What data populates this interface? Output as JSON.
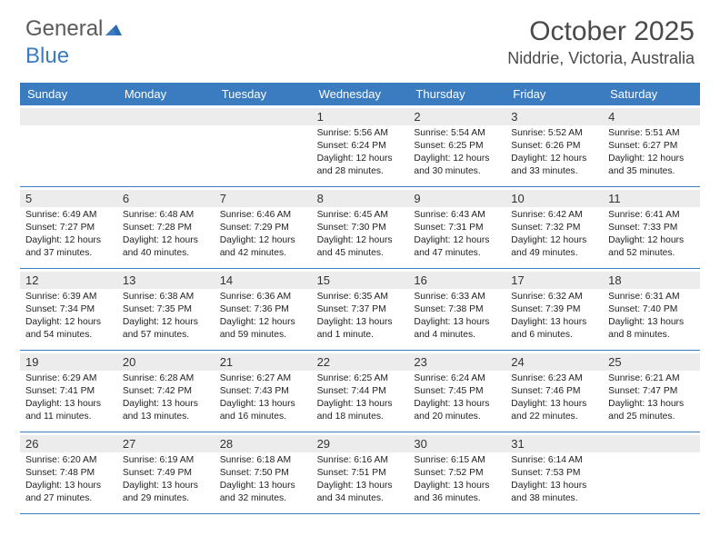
{
  "logo": {
    "text1": "General",
    "text2": "Blue"
  },
  "title": "October 2025",
  "location": "Niddrie, Victoria, Australia",
  "colors": {
    "header_bg": "#3b7bbf",
    "daynum_bg": "#ececec",
    "border": "#3b7bbf",
    "text": "#222222"
  },
  "day_headers": [
    "Sunday",
    "Monday",
    "Tuesday",
    "Wednesday",
    "Thursday",
    "Friday",
    "Saturday"
  ],
  "weeks": [
    [
      {
        "day": "",
        "sunrise": "",
        "sunset": "",
        "daylight": ""
      },
      {
        "day": "",
        "sunrise": "",
        "sunset": "",
        "daylight": ""
      },
      {
        "day": "",
        "sunrise": "",
        "sunset": "",
        "daylight": ""
      },
      {
        "day": "1",
        "sunrise": "Sunrise: 5:56 AM",
        "sunset": "Sunset: 6:24 PM",
        "daylight": "Daylight: 12 hours and 28 minutes."
      },
      {
        "day": "2",
        "sunrise": "Sunrise: 5:54 AM",
        "sunset": "Sunset: 6:25 PM",
        "daylight": "Daylight: 12 hours and 30 minutes."
      },
      {
        "day": "3",
        "sunrise": "Sunrise: 5:52 AM",
        "sunset": "Sunset: 6:26 PM",
        "daylight": "Daylight: 12 hours and 33 minutes."
      },
      {
        "day": "4",
        "sunrise": "Sunrise: 5:51 AM",
        "sunset": "Sunset: 6:27 PM",
        "daylight": "Daylight: 12 hours and 35 minutes."
      }
    ],
    [
      {
        "day": "5",
        "sunrise": "Sunrise: 6:49 AM",
        "sunset": "Sunset: 7:27 PM",
        "daylight": "Daylight: 12 hours and 37 minutes."
      },
      {
        "day": "6",
        "sunrise": "Sunrise: 6:48 AM",
        "sunset": "Sunset: 7:28 PM",
        "daylight": "Daylight: 12 hours and 40 minutes."
      },
      {
        "day": "7",
        "sunrise": "Sunrise: 6:46 AM",
        "sunset": "Sunset: 7:29 PM",
        "daylight": "Daylight: 12 hours and 42 minutes."
      },
      {
        "day": "8",
        "sunrise": "Sunrise: 6:45 AM",
        "sunset": "Sunset: 7:30 PM",
        "daylight": "Daylight: 12 hours and 45 minutes."
      },
      {
        "day": "9",
        "sunrise": "Sunrise: 6:43 AM",
        "sunset": "Sunset: 7:31 PM",
        "daylight": "Daylight: 12 hours and 47 minutes."
      },
      {
        "day": "10",
        "sunrise": "Sunrise: 6:42 AM",
        "sunset": "Sunset: 7:32 PM",
        "daylight": "Daylight: 12 hours and 49 minutes."
      },
      {
        "day": "11",
        "sunrise": "Sunrise: 6:41 AM",
        "sunset": "Sunset: 7:33 PM",
        "daylight": "Daylight: 12 hours and 52 minutes."
      }
    ],
    [
      {
        "day": "12",
        "sunrise": "Sunrise: 6:39 AM",
        "sunset": "Sunset: 7:34 PM",
        "daylight": "Daylight: 12 hours and 54 minutes."
      },
      {
        "day": "13",
        "sunrise": "Sunrise: 6:38 AM",
        "sunset": "Sunset: 7:35 PM",
        "daylight": "Daylight: 12 hours and 57 minutes."
      },
      {
        "day": "14",
        "sunrise": "Sunrise: 6:36 AM",
        "sunset": "Sunset: 7:36 PM",
        "daylight": "Daylight: 12 hours and 59 minutes."
      },
      {
        "day": "15",
        "sunrise": "Sunrise: 6:35 AM",
        "sunset": "Sunset: 7:37 PM",
        "daylight": "Daylight: 13 hours and 1 minute."
      },
      {
        "day": "16",
        "sunrise": "Sunrise: 6:33 AM",
        "sunset": "Sunset: 7:38 PM",
        "daylight": "Daylight: 13 hours and 4 minutes."
      },
      {
        "day": "17",
        "sunrise": "Sunrise: 6:32 AM",
        "sunset": "Sunset: 7:39 PM",
        "daylight": "Daylight: 13 hours and 6 minutes."
      },
      {
        "day": "18",
        "sunrise": "Sunrise: 6:31 AM",
        "sunset": "Sunset: 7:40 PM",
        "daylight": "Daylight: 13 hours and 8 minutes."
      }
    ],
    [
      {
        "day": "19",
        "sunrise": "Sunrise: 6:29 AM",
        "sunset": "Sunset: 7:41 PM",
        "daylight": "Daylight: 13 hours and 11 minutes."
      },
      {
        "day": "20",
        "sunrise": "Sunrise: 6:28 AM",
        "sunset": "Sunset: 7:42 PM",
        "daylight": "Daylight: 13 hours and 13 minutes."
      },
      {
        "day": "21",
        "sunrise": "Sunrise: 6:27 AM",
        "sunset": "Sunset: 7:43 PM",
        "daylight": "Daylight: 13 hours and 16 minutes."
      },
      {
        "day": "22",
        "sunrise": "Sunrise: 6:25 AM",
        "sunset": "Sunset: 7:44 PM",
        "daylight": "Daylight: 13 hours and 18 minutes."
      },
      {
        "day": "23",
        "sunrise": "Sunrise: 6:24 AM",
        "sunset": "Sunset: 7:45 PM",
        "daylight": "Daylight: 13 hours and 20 minutes."
      },
      {
        "day": "24",
        "sunrise": "Sunrise: 6:23 AM",
        "sunset": "Sunset: 7:46 PM",
        "daylight": "Daylight: 13 hours and 22 minutes."
      },
      {
        "day": "25",
        "sunrise": "Sunrise: 6:21 AM",
        "sunset": "Sunset: 7:47 PM",
        "daylight": "Daylight: 13 hours and 25 minutes."
      }
    ],
    [
      {
        "day": "26",
        "sunrise": "Sunrise: 6:20 AM",
        "sunset": "Sunset: 7:48 PM",
        "daylight": "Daylight: 13 hours and 27 minutes."
      },
      {
        "day": "27",
        "sunrise": "Sunrise: 6:19 AM",
        "sunset": "Sunset: 7:49 PM",
        "daylight": "Daylight: 13 hours and 29 minutes."
      },
      {
        "day": "28",
        "sunrise": "Sunrise: 6:18 AM",
        "sunset": "Sunset: 7:50 PM",
        "daylight": "Daylight: 13 hours and 32 minutes."
      },
      {
        "day": "29",
        "sunrise": "Sunrise: 6:16 AM",
        "sunset": "Sunset: 7:51 PM",
        "daylight": "Daylight: 13 hours and 34 minutes."
      },
      {
        "day": "30",
        "sunrise": "Sunrise: 6:15 AM",
        "sunset": "Sunset: 7:52 PM",
        "daylight": "Daylight: 13 hours and 36 minutes."
      },
      {
        "day": "31",
        "sunrise": "Sunrise: 6:14 AM",
        "sunset": "Sunset: 7:53 PM",
        "daylight": "Daylight: 13 hours and 38 minutes."
      },
      {
        "day": "",
        "sunrise": "",
        "sunset": "",
        "daylight": ""
      }
    ]
  ]
}
